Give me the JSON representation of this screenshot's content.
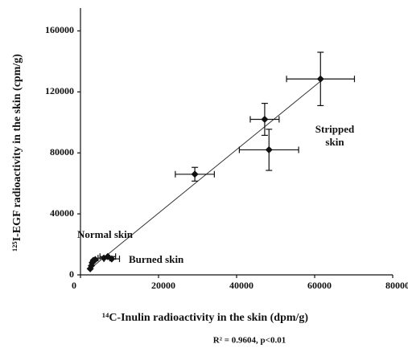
{
  "chart_data": {
    "type": "scatter",
    "x_label": "¹⁴C-Inulin radioactivity in the skin (dpm/g)",
    "y_label": "¹²⁵I-EGF radioactivity in the skin (cpm/g)",
    "x": [
      61500,
      47200,
      48300,
      29300,
      2500,
      2800,
      3000,
      3300,
      3800,
      6000,
      7000,
      8000
    ],
    "y": [
      128500,
      102000,
      82000,
      66000,
      4000,
      6000,
      8000,
      9500,
      10000,
      11000,
      12000,
      10500
    ],
    "x_err": [
      8700,
      3700,
      7600,
      5000,
      null,
      null,
      null,
      null,
      null,
      1500,
      2000,
      2000
    ],
    "y_err": [
      17500,
      10500,
      13500,
      4500,
      null,
      null,
      null,
      null,
      null,
      null,
      null,
      null
    ],
    "color": "#111111",
    "trendline": {
      "x": [
        2000,
        62000
      ],
      "y": [
        3000,
        128000
      ]
    },
    "xlim": [
      0,
      80000
    ],
    "xticks": [
      0,
      20000,
      40000,
      60000,
      80000
    ],
    "ylim": [
      0,
      175000
    ],
    "yticks": [
      0,
      40000,
      80000,
      120000,
      160000
    ],
    "annotations": [
      {
        "lines": [
          "Normal skin"
        ]
      },
      {
        "lines": [
          "Burned skin"
        ]
      },
      {
        "lines": [
          "Stripped",
          "skin"
        ]
      },
      {
        "lines": [
          "R² = 0.9604, p<0.01"
        ]
      }
    ]
  }
}
